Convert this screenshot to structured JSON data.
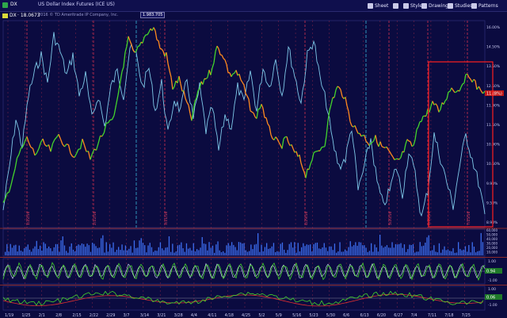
{
  "window": {
    "title": "US Dollar Index Futures (ICE US)",
    "toolbar": {
      "sheet_label": "Sheet",
      "style_label": "Style",
      "drawings_label": "Drawings",
      "studies_label": "Studies",
      "patterns_label": "Patterns"
    }
  },
  "legend": {
    "symbol_label": "· 18.0673",
    "copyright": "2016 © TD Ameritrade IP Company, Inc.",
    "symbol_input": "DX",
    "crosshair_value": "1.983.705"
  },
  "price_axis": {
    "ticks": [
      "16.00%",
      "14.50%",
      "13.50%",
      "12.50%",
      "11.90%",
      "11.50%",
      "10.90%",
      "10.50%",
      "9.90%",
      "9.50%",
      "8.90%"
    ],
    "last_price_tag": "11.(8%)"
  },
  "volume_axis": {
    "ticks": [
      "60,000",
      "50,000",
      "40,000",
      "30,000",
      "20,000",
      "10,000"
    ]
  },
  "osc1_axis": {
    "ticks": [
      "1.00",
      "0.00",
      "-1.00"
    ],
    "value_tag": "0.94"
  },
  "osc2_axis": {
    "ticks": [
      "1.00",
      "0.00",
      "-1.00"
    ],
    "value_tag": "0.06"
  },
  "date_axis": {
    "labels": [
      "1/19",
      "1/25",
      "2/1",
      "2/8",
      "2/15",
      "2/22",
      "2/29",
      "3/7",
      "3/14",
      "3/21",
      "3/28",
      "4/4",
      "4/11",
      "4/18",
      "4/25",
      "5/2",
      "5/9",
      "5/16",
      "5/23",
      "5/30",
      "6/6",
      "6/13",
      "6/20",
      "6/27",
      "7/4",
      "7/11",
      "7/18",
      "7/25"
    ]
  },
  "event_markers": [
    "1/22/16",
    "2/12/16",
    "3/11/16",
    "4/29/16",
    "5/20/16",
    "6/16/16",
    "7/15/16"
  ],
  "colors": {
    "background": "#0b0b40",
    "price_line": "#7ec8e8",
    "series_green": "#44d42c",
    "series_orange": "#ff8a1e",
    "grid_vertical": "#c0304a",
    "highlight_box": "#ff2020",
    "volume_bars": "#3c6ef0"
  }
}
